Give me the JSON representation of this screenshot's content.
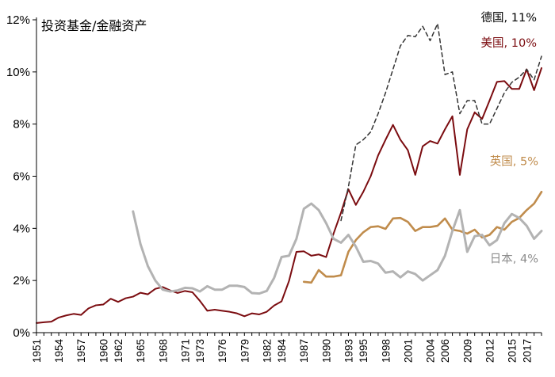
{
  "chart_data": {
    "type": "line",
    "title": "投资基金/金融资产",
    "x": [
      1951,
      1952,
      1953,
      1954,
      1955,
      1956,
      1957,
      1958,
      1959,
      1960,
      1961,
      1962,
      1963,
      1964,
      1965,
      1966,
      1967,
      1968,
      1969,
      1970,
      1971,
      1972,
      1973,
      1974,
      1975,
      1976,
      1977,
      1978,
      1979,
      1980,
      1981,
      1982,
      1983,
      1984,
      1985,
      1986,
      1987,
      1988,
      1989,
      1990,
      1991,
      1992,
      1993,
      1994,
      1995,
      1996,
      1997,
      1998,
      1999,
      2000,
      2001,
      2002,
      2003,
      2004,
      2005,
      2006,
      2007,
      2008,
      2009,
      2010,
      2011,
      2012,
      2013,
      2014,
      2015,
      2016,
      2017,
      2018,
      2019
    ],
    "x_ticks": [
      "1951",
      "1954",
      "1957",
      "1960",
      "1962",
      "1965",
      "1968",
      "1971",
      "1973",
      "1976",
      "1979",
      "1982",
      "1984",
      "1987",
      "1990",
      "1993",
      "1995",
      "1998",
      "2001",
      "2004",
      "2006",
      "2009",
      "2012",
      "2015",
      "2017"
    ],
    "y_ticks": [
      "0%",
      "2%",
      "4%",
      "6%",
      "8%",
      "10%",
      "12%"
    ],
    "ylim": [
      0,
      12
    ],
    "y_unit": "%",
    "grid": false,
    "series": [
      {
        "name": "美国",
        "label": "美国, 10%",
        "color": "#7b0c10",
        "dashed": false,
        "values": [
          0.37,
          0.4,
          0.42,
          0.58,
          0.66,
          0.72,
          0.68,
          0.93,
          1.05,
          1.08,
          1.3,
          1.18,
          1.32,
          1.38,
          1.53,
          1.47,
          1.68,
          1.75,
          1.62,
          1.52,
          1.6,
          1.55,
          1.22,
          0.84,
          0.88,
          0.84,
          0.8,
          0.74,
          0.63,
          0.74,
          0.7,
          0.8,
          1.04,
          1.2,
          1.98,
          3.1,
          3.12,
          2.95,
          3.0,
          2.9,
          3.8,
          4.6,
          5.5,
          4.9,
          5.4,
          6.0,
          6.8,
          7.4,
          7.97,
          7.4,
          7.0,
          6.05,
          7.15,
          7.35,
          7.25,
          7.8,
          8.3,
          6.05,
          7.8,
          8.45,
          8.2,
          8.9,
          9.62,
          9.65,
          9.35,
          9.35,
          10.1,
          9.3,
          10.15
        ]
      },
      {
        "name": "德国",
        "label": "德国, 11%",
        "color": "#333333",
        "dashed": true,
        "values": [
          null,
          null,
          null,
          null,
          null,
          null,
          null,
          null,
          null,
          null,
          null,
          null,
          null,
          null,
          null,
          null,
          null,
          null,
          null,
          null,
          null,
          null,
          null,
          null,
          null,
          null,
          null,
          null,
          null,
          null,
          null,
          null,
          null,
          null,
          null,
          null,
          null,
          null,
          null,
          null,
          null,
          4.3,
          5.6,
          7.2,
          7.4,
          7.7,
          8.4,
          9.2,
          10.1,
          11.0,
          11.4,
          11.35,
          11.75,
          11.2,
          11.85,
          9.9,
          10.0,
          8.4,
          8.9,
          8.9,
          8.0,
          8.0,
          8.6,
          9.2,
          9.6,
          9.8,
          10.1,
          9.7,
          10.6
        ]
      },
      {
        "name": "英国",
        "label": "英国, 5%",
        "color": "#c08c4c",
        "dashed": false,
        "values": [
          null,
          null,
          null,
          null,
          null,
          null,
          null,
          null,
          null,
          null,
          null,
          null,
          null,
          null,
          null,
          null,
          null,
          null,
          null,
          null,
          null,
          null,
          null,
          null,
          null,
          null,
          null,
          null,
          null,
          null,
          null,
          null,
          null,
          null,
          null,
          null,
          1.95,
          1.92,
          2.4,
          2.15,
          2.15,
          2.2,
          3.1,
          3.55,
          3.85,
          4.05,
          4.08,
          3.98,
          4.38,
          4.4,
          4.25,
          3.9,
          4.05,
          4.05,
          4.1,
          4.38,
          3.95,
          3.9,
          3.8,
          3.95,
          3.65,
          3.75,
          4.05,
          3.95,
          4.25,
          4.4,
          4.7,
          4.95,
          5.4
        ]
      },
      {
        "name": "日本",
        "label": "日本, 4%",
        "color": "#b3b3b3",
        "dashed": false,
        "values": [
          null,
          null,
          null,
          null,
          null,
          null,
          null,
          null,
          null,
          null,
          null,
          null,
          null,
          4.65,
          3.4,
          2.55,
          2.0,
          1.65,
          1.58,
          1.62,
          1.72,
          1.7,
          1.58,
          1.78,
          1.65,
          1.65,
          1.8,
          1.8,
          1.75,
          1.52,
          1.5,
          1.6,
          2.1,
          2.9,
          2.95,
          3.6,
          4.75,
          4.95,
          4.7,
          4.2,
          3.6,
          3.45,
          3.75,
          3.3,
          2.72,
          2.75,
          2.65,
          2.3,
          2.35,
          2.12,
          2.35,
          2.25,
          2.0,
          2.2,
          2.4,
          2.95,
          3.9,
          4.7,
          3.1,
          3.7,
          3.75,
          3.35,
          3.55,
          4.2,
          4.55,
          4.4,
          4.1,
          3.6,
          3.9
        ]
      }
    ]
  }
}
